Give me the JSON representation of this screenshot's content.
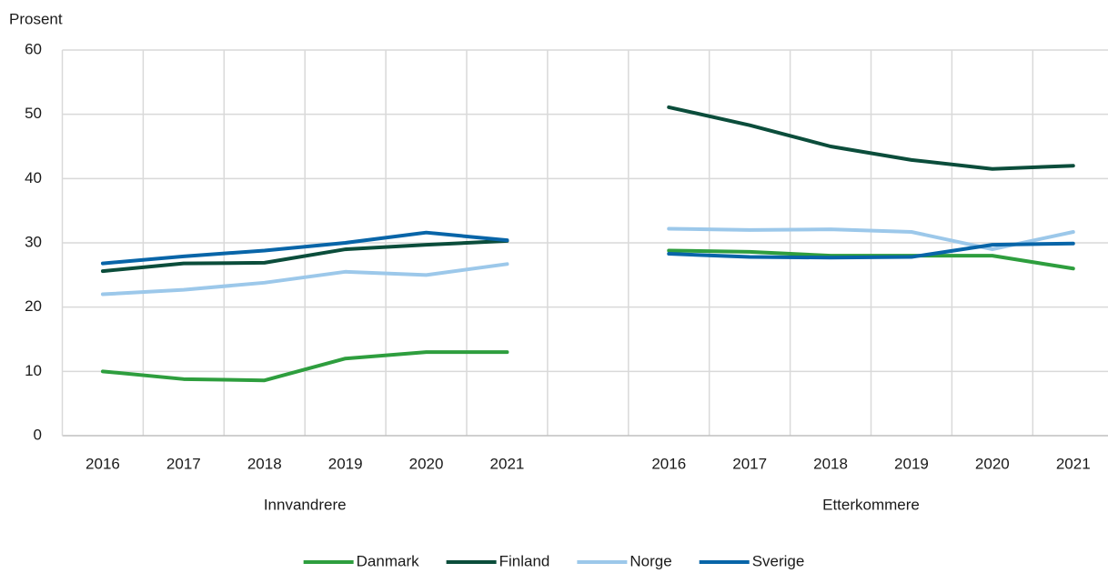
{
  "chart_data": {
    "type": "line",
    "y_label": "Prosent",
    "categories": [
      "2016",
      "2017",
      "2018",
      "2019",
      "2020",
      "2021",
      null,
      "2016",
      "2017",
      "2018",
      "2019",
      "2020",
      "2021"
    ],
    "groups": [
      "Innvandrere",
      "Etterkommere"
    ],
    "series": [
      {
        "name": "Danmark",
        "color": "#2e9e3e",
        "values": [
          10,
          8.8,
          8.6,
          12,
          13,
          13,
          null,
          28.8,
          28.6,
          28,
          28,
          28,
          26
        ]
      },
      {
        "name": "Finland",
        "color": "#0b4d3b",
        "values": [
          25.6,
          26.8,
          26.9,
          29,
          29.7,
          30.3,
          null,
          51.1,
          48.3,
          45,
          42.9,
          41.5,
          42
        ]
      },
      {
        "name": "Norge",
        "color": "#9cc8ea",
        "values": [
          22,
          22.7,
          23.8,
          25.5,
          25,
          26.7,
          null,
          32.2,
          32,
          32.1,
          31.7,
          29,
          31.7
        ]
      },
      {
        "name": "Sverige",
        "color": "#0865a8",
        "values": [
          26.8,
          27.9,
          28.8,
          30,
          31.6,
          30.4,
          null,
          28.3,
          27.8,
          27.7,
          27.8,
          29.7,
          29.9
        ]
      }
    ],
    "ylim": [
      0,
      60
    ],
    "yticks": [
      0,
      10,
      20,
      30,
      40,
      50,
      60
    ],
    "grid": true,
    "legend": "bottom"
  }
}
